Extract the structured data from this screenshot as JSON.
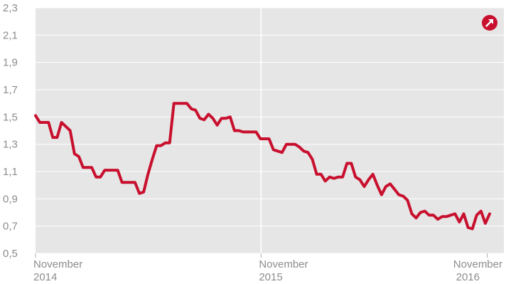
{
  "chart_data": {
    "type": "line",
    "title": "",
    "xlabel": "",
    "ylabel": "",
    "ylim": [
      0.5,
      2.3
    ],
    "yticks": [
      0.5,
      0.7,
      0.9,
      1.1,
      1.3,
      1.5,
      1.7,
      1.9,
      2.1,
      2.3
    ],
    "ytick_labels": [
      "0,5",
      "0,7",
      "0,9",
      "1,1",
      "1,3",
      "1,5",
      "1,7",
      "1,9",
      "2,1",
      "2,3"
    ],
    "xlim": [
      "2014-11-01",
      "2016-11-28"
    ],
    "xticks": [
      {
        "date": "2014-11-01",
        "line1": "November",
        "line2": "2014"
      },
      {
        "date": "2015-11-01",
        "line1": "November",
        "line2": "2015"
      },
      {
        "date": "2016-11-01",
        "line1": "November",
        "line2": "2016"
      }
    ],
    "grid": "horizontal",
    "series": [
      {
        "color": "#c8102e",
        "points": [
          [
            "2014-11-01",
            1.51
          ],
          [
            "2014-11-08",
            1.46
          ],
          [
            "2014-11-15",
            1.46
          ],
          [
            "2014-11-22",
            1.46
          ],
          [
            "2014-11-29",
            1.35
          ],
          [
            "2014-12-06",
            1.35
          ],
          [
            "2014-12-13",
            1.46
          ],
          [
            "2014-12-20",
            1.43
          ],
          [
            "2014-12-27",
            1.4
          ],
          [
            "2015-01-03",
            1.23
          ],
          [
            "2015-01-10",
            1.21
          ],
          [
            "2015-01-17",
            1.13
          ],
          [
            "2015-01-24",
            1.13
          ],
          [
            "2015-01-31",
            1.13
          ],
          [
            "2015-02-07",
            1.06
          ],
          [
            "2015-02-14",
            1.06
          ],
          [
            "2015-02-21",
            1.11
          ],
          [
            "2015-02-28",
            1.11
          ],
          [
            "2015-03-07",
            1.11
          ],
          [
            "2015-03-14",
            1.11
          ],
          [
            "2015-03-21",
            1.02
          ],
          [
            "2015-03-28",
            1.02
          ],
          [
            "2015-04-04",
            1.02
          ],
          [
            "2015-04-11",
            1.02
          ],
          [
            "2015-04-18",
            0.94
          ],
          [
            "2015-04-25",
            0.95
          ],
          [
            "2015-05-02",
            1.08
          ],
          [
            "2015-05-09",
            1.19
          ],
          [
            "2015-05-16",
            1.29
          ],
          [
            "2015-05-23",
            1.29
          ],
          [
            "2015-05-30",
            1.31
          ],
          [
            "2015-06-06",
            1.31
          ],
          [
            "2015-06-13",
            1.6
          ],
          [
            "2015-06-20",
            1.6
          ],
          [
            "2015-06-27",
            1.6
          ],
          [
            "2015-07-04",
            1.6
          ],
          [
            "2015-07-11",
            1.56
          ],
          [
            "2015-07-18",
            1.55
          ],
          [
            "2015-07-25",
            1.49
          ],
          [
            "2015-08-01",
            1.48
          ],
          [
            "2015-08-08",
            1.52
          ],
          [
            "2015-08-15",
            1.49
          ],
          [
            "2015-08-22",
            1.44
          ],
          [
            "2015-08-29",
            1.49
          ],
          [
            "2015-09-05",
            1.49
          ],
          [
            "2015-09-12",
            1.5
          ],
          [
            "2015-09-19",
            1.4
          ],
          [
            "2015-09-26",
            1.4
          ],
          [
            "2015-10-03",
            1.39
          ],
          [
            "2015-10-10",
            1.39
          ],
          [
            "2015-10-17",
            1.39
          ],
          [
            "2015-10-24",
            1.39
          ],
          [
            "2015-10-31",
            1.34
          ],
          [
            "2015-11-07",
            1.34
          ],
          [
            "2015-11-14",
            1.34
          ],
          [
            "2015-11-21",
            1.26
          ],
          [
            "2015-11-28",
            1.25
          ],
          [
            "2015-12-05",
            1.24
          ],
          [
            "2015-12-12",
            1.3
          ],
          [
            "2015-12-19",
            1.3
          ],
          [
            "2015-12-26",
            1.3
          ],
          [
            "2016-01-02",
            1.28
          ],
          [
            "2016-01-09",
            1.25
          ],
          [
            "2016-01-16",
            1.24
          ],
          [
            "2016-01-23",
            1.19
          ],
          [
            "2016-01-30",
            1.08
          ],
          [
            "2016-02-06",
            1.08
          ],
          [
            "2016-02-13",
            1.03
          ],
          [
            "2016-02-20",
            1.06
          ],
          [
            "2016-02-27",
            1.05
          ],
          [
            "2016-03-05",
            1.06
          ],
          [
            "2016-03-12",
            1.06
          ],
          [
            "2016-03-19",
            1.16
          ],
          [
            "2016-03-26",
            1.16
          ],
          [
            "2016-04-02",
            1.06
          ],
          [
            "2016-04-09",
            1.04
          ],
          [
            "2016-04-16",
            0.99
          ],
          [
            "2016-04-23",
            1.04
          ],
          [
            "2016-04-30",
            1.08
          ],
          [
            "2016-05-07",
            1.0
          ],
          [
            "2016-05-14",
            0.93
          ],
          [
            "2016-05-21",
            0.99
          ],
          [
            "2016-05-28",
            1.01
          ],
          [
            "2016-06-04",
            0.97
          ],
          [
            "2016-06-11",
            0.93
          ],
          [
            "2016-06-18",
            0.92
          ],
          [
            "2016-06-25",
            0.89
          ],
          [
            "2016-07-02",
            0.79
          ],
          [
            "2016-07-09",
            0.76
          ],
          [
            "2016-07-16",
            0.8
          ],
          [
            "2016-07-23",
            0.81
          ],
          [
            "2016-07-30",
            0.78
          ],
          [
            "2016-08-06",
            0.78
          ],
          [
            "2016-08-13",
            0.75
          ],
          [
            "2016-08-20",
            0.77
          ],
          [
            "2016-08-27",
            0.77
          ],
          [
            "2016-09-03",
            0.78
          ],
          [
            "2016-09-10",
            0.79
          ],
          [
            "2016-09-17",
            0.73
          ],
          [
            "2016-09-24",
            0.79
          ],
          [
            "2016-10-01",
            0.69
          ],
          [
            "2016-10-08",
            0.68
          ],
          [
            "2016-10-15",
            0.78
          ],
          [
            "2016-10-22",
            0.81
          ],
          [
            "2016-10-29",
            0.72
          ],
          [
            "2016-11-05",
            0.79
          ]
        ]
      }
    ],
    "annotations": [
      {
        "type": "vertical-line",
        "date": "2015-11-01",
        "color": "#ffffff"
      },
      {
        "type": "icon",
        "name": "arrow-up-right-circle-icon",
        "color": "#c8102e",
        "placement": "top-right"
      }
    ]
  }
}
